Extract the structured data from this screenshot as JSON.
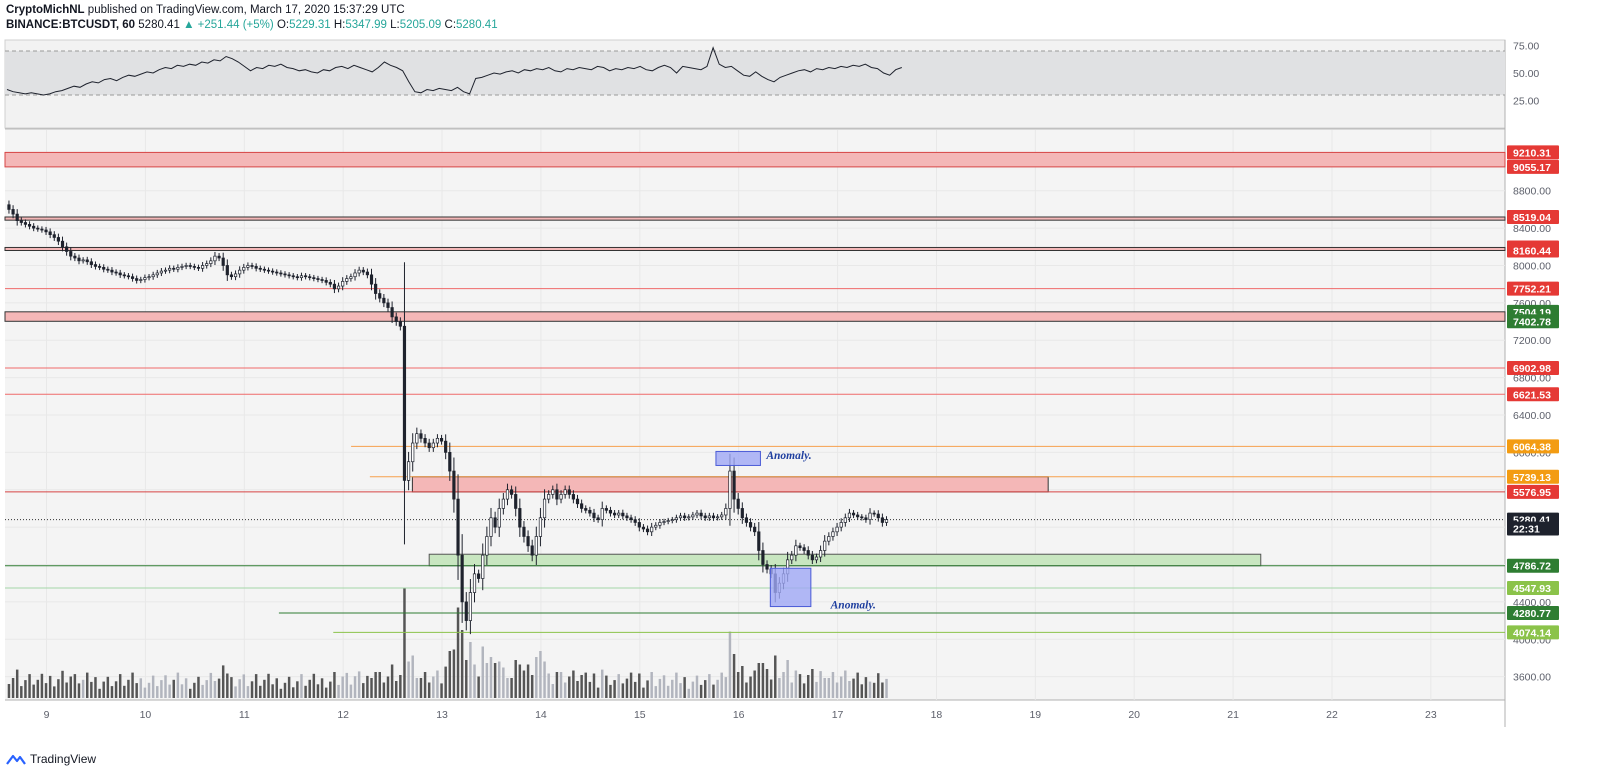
{
  "header": {
    "author": "CryptoMichNL",
    "published": "published on TradingView.com, March 17, 2020 15:37:29 UTC",
    "symbol": "BINANCE:BTCUSDT, 60",
    "last": "5280.41",
    "change": "▲ +251.44 (+5%)",
    "o_label": "O:",
    "o": "5229.31",
    "h_label": "H:",
    "h": "5347.99",
    "l_label": "L:",
    "l": "5205.09",
    "c_label": "C:",
    "c": "5280.41"
  },
  "footer": {
    "brand": "TradingView"
  },
  "chart_data": {
    "type": "candlestick",
    "price_axis": {
      "ylim": [
        3350,
        9450
      ],
      "ticks": [
        3600,
        4000,
        4400,
        4800,
        5200,
        5600,
        6000,
        6400,
        6800,
        7200,
        7600,
        8000,
        8400,
        8800,
        9200
      ],
      "tick_labels": [
        "3600.00",
        "4000.00",
        "4400.00",
        "4800.00",
        "5200.00",
        "5600.00",
        "6000.00",
        "6400.00",
        "6800.00",
        "7200.00",
        "7600.00",
        "8000.00",
        "8400.00",
        "8800.00",
        "9200.00"
      ]
    },
    "rsi_panel": {
      "ylim": [
        0,
        80
      ],
      "ticks": [
        25,
        50,
        75
      ],
      "tick_labels": [
        "25.00",
        "50.00",
        "75.00"
      ],
      "band": [
        30,
        70
      ],
      "values": [
        35,
        33,
        32,
        31,
        32,
        31,
        30,
        31,
        33,
        34,
        36,
        38,
        37,
        40,
        42,
        41,
        44,
        45,
        43,
        46,
        48,
        47,
        49,
        51,
        50,
        53,
        55,
        54,
        57,
        56,
        58,
        57,
        60,
        59,
        62,
        61,
        65,
        63,
        60,
        56,
        52,
        55,
        54,
        57,
        56,
        58,
        55,
        54,
        52,
        53,
        51,
        50,
        53,
        52,
        55,
        56,
        54,
        57,
        55,
        53,
        51,
        55,
        60,
        57,
        55,
        52,
        42,
        33,
        32,
        35,
        34,
        36,
        35,
        34,
        37,
        33,
        31,
        45,
        46,
        48,
        50,
        49,
        51,
        52,
        50,
        53,
        52,
        54,
        53,
        55,
        52,
        51,
        54,
        53,
        55,
        54,
        53,
        56,
        55,
        52,
        54,
        53,
        55,
        54,
        56,
        53,
        52,
        55,
        57,
        55,
        50,
        56,
        55,
        54,
        53,
        56,
        73,
        58,
        55,
        56,
        52,
        48,
        47,
        51,
        47,
        44,
        42,
        46,
        48,
        50,
        52,
        53,
        51,
        54,
        53,
        55,
        54,
        56,
        55,
        57,
        56,
        58,
        55,
        54,
        50,
        48,
        53,
        55
      ]
    },
    "x_axis": {
      "labels": [
        "9",
        "10",
        "11",
        "12",
        "13",
        "14",
        "15",
        "16",
        "17",
        "18",
        "19",
        "20",
        "21",
        "22",
        "23"
      ],
      "days": [
        9,
        10,
        11,
        12,
        13,
        14,
        15,
        16,
        17,
        18,
        19,
        20,
        21,
        22,
        23
      ],
      "xlim": [
        8.58,
        23.75
      ]
    },
    "candles": {
      "start_day": 8.62,
      "step_hours": 1,
      "open0": 8650,
      "closes": [
        8600,
        8550,
        8480,
        8460,
        8440,
        8420,
        8400,
        8390,
        8380,
        8360,
        8330,
        8300,
        8260,
        8200,
        8150,
        8100,
        8080,
        8050,
        8060,
        8040,
        8010,
        7990,
        7980,
        7960,
        7950,
        7930,
        7920,
        7900,
        7890,
        7880,
        7860,
        7840,
        7850,
        7870,
        7880,
        7900,
        7920,
        7940,
        7950,
        7970,
        7960,
        7980,
        7990,
        8000,
        7990,
        7980,
        7970,
        8000,
        8020,
        8050,
        8100,
        8080,
        8000,
        7900,
        7880,
        7910,
        7950,
        7980,
        8000,
        7990,
        7970,
        7960,
        7950,
        7940,
        7930,
        7920,
        7910,
        7900,
        7890,
        7880,
        7870,
        7890,
        7880,
        7870,
        7860,
        7850,
        7840,
        7820,
        7800,
        7750,
        7780,
        7830,
        7860,
        7880,
        7920,
        7950,
        7930,
        7900,
        7800,
        7700,
        7650,
        7600,
        7550,
        7450,
        7400,
        7350,
        5700,
        5900,
        6100,
        6200,
        6150,
        6100,
        6050,
        6100,
        6150,
        6120,
        6000,
        5800,
        5500,
        4900,
        4400,
        4200,
        4500,
        4700,
        4650,
        4900,
        5100,
        5300,
        5200,
        5400,
        5500,
        5600,
        5550,
        5400,
        5200,
        5100,
        5000,
        4900,
        5100,
        5300,
        5500,
        5550,
        5600,
        5500,
        5550,
        5600,
        5550,
        5500,
        5450,
        5400,
        5380,
        5350,
        5300,
        5280,
        5400,
        5380,
        5350,
        5330,
        5350,
        5320,
        5300,
        5280,
        5250,
        5200,
        5180,
        5150,
        5200,
        5220,
        5250,
        5260,
        5270,
        5280,
        5300,
        5320,
        5300,
        5310,
        5330,
        5350,
        5320,
        5300,
        5320,
        5300,
        5310,
        5330,
        5400,
        5800,
        5500,
        5400,
        5300,
        5250,
        5200,
        5150,
        4950,
        4800,
        4750,
        4700,
        4500,
        4600,
        4700,
        4850,
        4900,
        5000,
        4980,
        4950,
        4900,
        4850,
        4880,
        4950,
        5050,
        5100,
        5150,
        5200,
        5250,
        5300,
        5350,
        5330,
        5310,
        5300,
        5280,
        5350,
        5340,
        5300,
        5250,
        5280
      ],
      "volume_hint": "bars scaled relative"
    },
    "zones": [
      {
        "type": "resistance",
        "y1": 9055.17,
        "y2": 9210.31,
        "from": "left",
        "to": "right",
        "color": "#f4b7b7",
        "border": "#d64545"
      },
      {
        "type": "resistance",
        "y1": 8485,
        "y2": 8519.04,
        "from": "left",
        "to": "right",
        "color": "#f4b7b7",
        "border": "#333333"
      },
      {
        "type": "resistance",
        "y1": 8160.44,
        "y2": 8192.9,
        "from": "left",
        "to": "right",
        "color": "#f4b7b7",
        "border": "#333333"
      },
      {
        "type": "resistance",
        "y1": 7402.78,
        "y2": 7504.19,
        "from": "left",
        "to": "right",
        "color": "#f4b7b7",
        "border": "#333333"
      },
      {
        "type": "resistance",
        "y1": 5576.95,
        "y2": 5739.13,
        "from_day": 12.7,
        "to_day": 19.13,
        "color": "#f4b7b7",
        "border": "#333333"
      },
      {
        "type": "support",
        "y1": 4786.72,
        "y2": 4910,
        "from_day": 12.87,
        "to_day": 21.28,
        "color": "#c8e6c0",
        "border": "#555555"
      }
    ],
    "hlines": [
      {
        "y": 7752.21,
        "color": "#ef6a6a",
        "from": "left"
      },
      {
        "y": 6902.98,
        "color": "#ef6a6a",
        "from": "left"
      },
      {
        "y": 6621.53,
        "color": "#ef6a6a",
        "from": "left"
      },
      {
        "y": 6064.38,
        "color": "#f6a04d",
        "from_day": 12.08
      },
      {
        "y": 5739.13,
        "color": "#f6a04d",
        "from_day": 12.27
      },
      {
        "y": 5576.95,
        "color": "#d64545",
        "from": "left"
      },
      {
        "y": 4786.72,
        "color": "#2e7d32",
        "from": "left"
      },
      {
        "y": 4547.93,
        "color": "#a5d6a7",
        "from": "left"
      },
      {
        "y": 4280.77,
        "color": "#2e7d32",
        "from_day": 11.35
      },
      {
        "y": 4074.14,
        "color": "#8bc34a",
        "from_day": 11.9
      }
    ],
    "price_tags": [
      {
        "label": "9210.31",
        "y": 9210.31,
        "color": "#e53935"
      },
      {
        "label": "9055.17",
        "y": 9055.17,
        "color": "#e53935"
      },
      {
        "label": "8519.04",
        "y": 8519.04,
        "color": "#e53935"
      },
      {
        "label": "8192.90",
        "y": 8192.9,
        "color": "#e53935"
      },
      {
        "label": "8160.44",
        "y": 8160.44,
        "color": "#e53935"
      },
      {
        "label": "7752.21",
        "y": 7752.21,
        "color": "#e53935"
      },
      {
        "label": "7504.19",
        "y": 7504.19,
        "color": "#2e7d32"
      },
      {
        "label": "7402.78",
        "y": 7402.78,
        "color": "#2e7d32"
      },
      {
        "label": "6902.98",
        "y": 6902.98,
        "color": "#e53935"
      },
      {
        "label": "6621.53",
        "y": 6621.53,
        "color": "#e53935"
      },
      {
        "label": "6064.38",
        "y": 6064.38,
        "color": "#f39c12"
      },
      {
        "label": "5739.13",
        "y": 5739.13,
        "color": "#f39c12"
      },
      {
        "label": "5576.95",
        "y": 5576.95,
        "color": "#e53935"
      },
      {
        "label": "5280.41",
        "y": 5280.41,
        "color": "#1e222d"
      },
      {
        "label": "22:31",
        "y": 5185,
        "color": "#1e222d"
      },
      {
        "label": "4786.72",
        "y": 4786.72,
        "color": "#2e7d32"
      },
      {
        "label": "4547.93",
        "y": 4547.93,
        "color": "#8bc34a"
      },
      {
        "label": "4280.77",
        "y": 4280.77,
        "color": "#2e7d32"
      },
      {
        "label": "4074.14",
        "y": 4074.14,
        "color": "#8bc34a"
      }
    ],
    "annotations": [
      {
        "text": "Anomaly.",
        "day": 16.28,
        "y": 5930
      },
      {
        "text": "Anomaly.",
        "day": 16.93,
        "y": 4330
      }
    ],
    "anomaly_boxes": [
      {
        "d1": 15.77,
        "d2": 16.22,
        "y1": 5860,
        "y2": 6010
      },
      {
        "d1": 16.32,
        "d2": 16.73,
        "y1": 4350,
        "y2": 4760
      }
    ],
    "grid": true,
    "colors": {
      "candle": "#1e222d",
      "candle_up": "#ffffff",
      "volume_up": "#b2b5be",
      "volume_down": "#555555",
      "rsi_line": "#1e222d",
      "rsi_band": "#e0e1e3",
      "background": "#f4f4f4"
    }
  }
}
